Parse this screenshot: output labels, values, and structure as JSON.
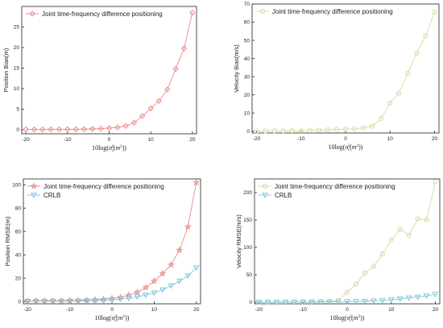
{
  "chart_data": [
    {
      "type": "line",
      "ylabel": "Position Bias(m)",
      "xlabel": "10log(σ_v^2(m^2))",
      "xlim": [
        -21,
        21
      ],
      "ylim": [
        -1,
        30
      ],
      "xticks": [
        -20,
        -10,
        0,
        10,
        20
      ],
      "yticks": [
        0,
        5,
        10,
        15,
        20,
        25
      ],
      "legend_position": "top-left",
      "x": [
        -20,
        -18,
        -16,
        -14,
        -12,
        -10,
        -8,
        -6,
        -4,
        -2,
        0,
        2,
        4,
        6,
        8,
        10,
        12,
        14,
        16,
        18,
        20
      ],
      "series": [
        {
          "name": "Joint time-frequency difference positioning",
          "color": "#e88b8b",
          "marker": "diamond",
          "values": [
            0.05,
            0.05,
            0.05,
            0.06,
            0.07,
            0.08,
            0.1,
            0.13,
            0.18,
            0.26,
            0.38,
            0.55,
            0.9,
            1.7,
            3.3,
            5.2,
            7.0,
            9.8,
            14.8,
            19.8,
            28.5
          ]
        }
      ]
    },
    {
      "type": "line",
      "ylabel": "Velocity Bias(m/s)",
      "xlabel": "10log(σ_v^2(m^2))",
      "xlim": [
        -21,
        21
      ],
      "ylim": [
        -1,
        70
      ],
      "xticks": [
        -20,
        -10,
        0,
        10,
        20
      ],
      "yticks": [
        0,
        10,
        20,
        30,
        40,
        50,
        60,
        70
      ],
      "legend_position": "top-left",
      "x": [
        -20,
        -18,
        -16,
        -14,
        -12,
        -10,
        -8,
        -6,
        -4,
        -2,
        0,
        2,
        4,
        6,
        8,
        10,
        12,
        14,
        16,
        18,
        20
      ],
      "series": [
        {
          "name": "Joint time-frequency difference positioning",
          "color": "#d6dba6",
          "marker": "circle",
          "values": [
            0.1,
            0.1,
            0.15,
            0.2,
            0.25,
            0.3,
            0.4,
            0.5,
            0.7,
            0.9,
            1.1,
            1.3,
            1.8,
            2.8,
            7.0,
            15.5,
            21.0,
            32.0,
            43.0,
            52.5,
            65.5
          ]
        }
      ]
    },
    {
      "type": "line",
      "ylabel": "Position RMSE(m)",
      "xlabel": "10log(σ_v^2(m^2))",
      "xlim": [
        -21,
        21
      ],
      "ylim": [
        -2,
        105
      ],
      "xticks": [
        -20,
        -10,
        0,
        10,
        20
      ],
      "yticks": [
        0,
        20,
        40,
        60,
        80,
        100
      ],
      "legend_position": "top-left",
      "x": [
        -20,
        -18,
        -16,
        -14,
        -12,
        -10,
        -8,
        -6,
        -4,
        -2,
        0,
        2,
        4,
        6,
        8,
        10,
        12,
        14,
        16,
        18,
        20
      ],
      "series": [
        {
          "name": "Joint time-frequency difference positioning",
          "color": "#e88b8b",
          "marker": "star",
          "values": [
            0.3,
            0.35,
            0.4,
            0.5,
            0.6,
            0.7,
            0.9,
            1.1,
            1.4,
            1.9,
            2.6,
            3.5,
            5.5,
            8.0,
            12.0,
            17.5,
            24.0,
            31.5,
            44.0,
            64.0,
            102.0
          ]
        },
        {
          "name": "CRLB",
          "color": "#7cc8dc",
          "marker": "triangle-down",
          "values": [
            0.1,
            0.12,
            0.15,
            0.2,
            0.25,
            0.3,
            0.4,
            0.55,
            0.75,
            1.0,
            1.4,
            2.0,
            2.8,
            4.0,
            5.6,
            7.5,
            10.0,
            13.5,
            17.5,
            22.0,
            29.0
          ]
        }
      ]
    },
    {
      "type": "line",
      "ylabel": "Velocity RMSE(m/s)",
      "xlabel": "10log(σ_v^2(m^2))",
      "xlim": [
        -21,
        21
      ],
      "ylim": [
        -3,
        225
      ],
      "xticks": [
        -20,
        -10,
        0,
        10,
        20
      ],
      "yticks": [
        0,
        50,
        100,
        150,
        200
      ],
      "legend_position": "top-left",
      "x": [
        -20,
        -18,
        -16,
        -14,
        -12,
        -10,
        -8,
        -6,
        -4,
        -2,
        0,
        2,
        4,
        6,
        8,
        10,
        12,
        14,
        16,
        18,
        20
      ],
      "series": [
        {
          "name": "Joint time-frequency difference positioning",
          "color": "#d6dba6",
          "marker": "circle",
          "values": [
            0.5,
            0.5,
            0.6,
            0.7,
            0.8,
            0.9,
            1.0,
            1.2,
            1.6,
            3.0,
            18.0,
            33.0,
            53.0,
            65.0,
            88.0,
            113.0,
            133.0,
            122.0,
            152.0,
            150.0,
            220.0
          ]
        },
        {
          "name": "CRLB",
          "color": "#7cc8dc",
          "marker": "triangle-down",
          "values": [
            0.1,
            0.1,
            0.12,
            0.15,
            0.2,
            0.25,
            0.3,
            0.4,
            0.5,
            0.7,
            1.0,
            1.3,
            1.8,
            2.5,
            3.3,
            4.5,
            6.0,
            7.8,
            9.5,
            11.5,
            14.5
          ]
        }
      ]
    }
  ]
}
